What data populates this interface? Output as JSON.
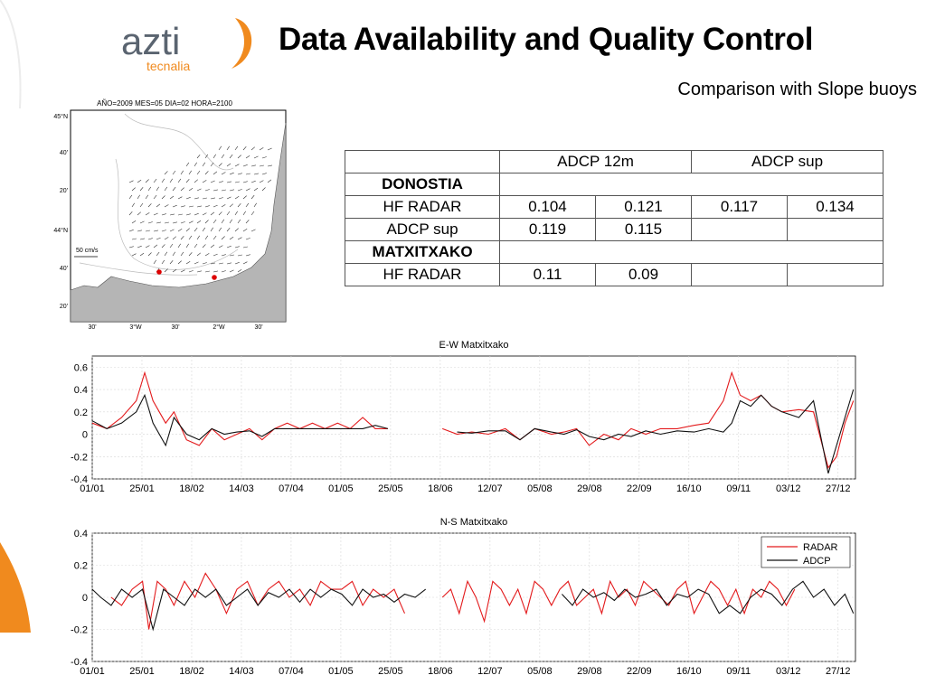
{
  "header": {
    "title": "Data Availability and Quality Control",
    "subtitle": "Comparison with Slope buoys"
  },
  "logo": {
    "main": "azti",
    "sub": "tecnalia"
  },
  "map": {
    "caption": "AÑO=2009 MES=05 DIA=02 HORA=2100",
    "scale_label": "50 cm/s",
    "lat_labels": [
      "45°N",
      "40'",
      "20'",
      "44°N",
      "40'",
      "20'"
    ],
    "lon_labels": [
      "30'",
      "3°W",
      "30'",
      "2°W",
      "30'"
    ],
    "marker_color": "#dd0000"
  },
  "table": {
    "header": [
      "",
      "ADCP 12m",
      "ADCP sup"
    ],
    "sections": [
      {
        "name": "DONOSTIA",
        "rows": [
          {
            "label": "HF RADAR",
            "cells": [
              "0.104",
              "0.121",
              "0.117",
              "0.134"
            ]
          },
          {
            "label": "ADCP sup",
            "cells": [
              "0.119",
              "0.115",
              "",
              ""
            ]
          }
        ]
      },
      {
        "name": "MATXITXAKO",
        "rows": [
          {
            "label": "HF RADAR",
            "cells": [
              "0.11",
              "0.09",
              "",
              ""
            ]
          }
        ]
      }
    ]
  },
  "chart_data": [
    {
      "type": "line",
      "title": "E-W Matxitxako",
      "ylim": [
        -0.4,
        0.7
      ],
      "yticks": [
        -0.4,
        -0.2,
        0,
        0.2,
        0.4,
        0.6
      ],
      "xticks": [
        "01/01",
        "25/01",
        "18/02",
        "14/03",
        "07/04",
        "01/05",
        "25/05",
        "18/06",
        "12/07",
        "05/08",
        "29/08",
        "22/09",
        "16/10",
        "09/11",
        "03/12",
        "27/12"
      ],
      "x_unit": "day of year",
      "grid": true,
      "series": [
        {
          "name": "RADAR",
          "color": "#e31a1c",
          "x": [
            1,
            8,
            15,
            22,
            26,
            30,
            36,
            40,
            46,
            52,
            58,
            64,
            70,
            76,
            82,
            88,
            94,
            100,
            106,
            112,
            118,
            124,
            130,
            136,
            142,
            168,
            175,
            182,
            190,
            198,
            205,
            212,
            220,
            226,
            232,
            238,
            245,
            252,
            258,
            265,
            272,
            280,
            288,
            295,
            302,
            306,
            310,
            315,
            320,
            325,
            330,
            338,
            345,
            352,
            356,
            360,
            364
          ],
          "y": [
            0.1,
            0.05,
            0.15,
            0.3,
            0.55,
            0.3,
            0.1,
            0.2,
            -0.05,
            -0.1,
            0.05,
            -0.05,
            0,
            0.05,
            -0.05,
            0.05,
            0.1,
            0.05,
            0.1,
            0.05,
            0.1,
            0.05,
            0.15,
            0.05,
            0.05,
            0.05,
            0,
            0.02,
            0,
            0.05,
            -0.05,
            0.05,
            0,
            0.02,
            0.05,
            -0.1,
            0.0,
            -0.05,
            0.05,
            0,
            0.05,
            0.05,
            0.08,
            0.1,
            0.3,
            0.55,
            0.35,
            0.3,
            0.35,
            0.25,
            0.2,
            0.22,
            0.2,
            -0.3,
            -0.2,
            0.1,
            0.3
          ]
        },
        {
          "name": "ADCP",
          "color": "#111111",
          "x": [
            1,
            8,
            15,
            22,
            26,
            30,
            36,
            40,
            46,
            52,
            58,
            64,
            70,
            76,
            82,
            88,
            94,
            100,
            106,
            112,
            118,
            124,
            130,
            136,
            142,
            175,
            182,
            190,
            198,
            205,
            212,
            220,
            226,
            232,
            238,
            245,
            252,
            258,
            265,
            272,
            280,
            288,
            295,
            302,
            306,
            310,
            315,
            320,
            325,
            330,
            338,
            345,
            352,
            356,
            360,
            364
          ],
          "y": [
            0.12,
            0.05,
            0.1,
            0.2,
            0.35,
            0.1,
            -0.1,
            0.15,
            0,
            -0.05,
            0.05,
            0,
            0.02,
            0.03,
            -0.02,
            0.05,
            0.05,
            0.05,
            0.05,
            0.05,
            0.05,
            0.05,
            0.05,
            0.08,
            0.05,
            0.02,
            0.01,
            0.03,
            0.03,
            -0.05,
            0.05,
            0.02,
            0,
            0.04,
            -0.02,
            -0.05,
            0.0,
            -0.02,
            0.03,
            0,
            0.03,
            0.02,
            0.05,
            0.02,
            0.1,
            0.3,
            0.25,
            0.35,
            0.25,
            0.2,
            0.15,
            0.3,
            -0.35,
            -0.1,
            0.15,
            0.4
          ]
        }
      ]
    },
    {
      "type": "line",
      "title": "N-S Matxitxako",
      "ylim": [
        -0.4,
        0.4
      ],
      "yticks": [
        -0.4,
        -0.2,
        0,
        0.2,
        0.4
      ],
      "xticks": [
        "01/01",
        "25/01",
        "18/02",
        "14/03",
        "07/04",
        "01/05",
        "25/05",
        "18/06",
        "12/07",
        "05/08",
        "29/08",
        "22/09",
        "16/10",
        "09/11",
        "03/12",
        "27/12"
      ],
      "x_unit": "day of year",
      "grid": true,
      "legend": "top-right",
      "series": [
        {
          "name": "RADAR",
          "color": "#e31a1c",
          "x": [
            10,
            15,
            20,
            25,
            28,
            32,
            36,
            40,
            45,
            50,
            55,
            60,
            65,
            70,
            75,
            80,
            85,
            90,
            95,
            100,
            105,
            110,
            115,
            120,
            125,
            130,
            135,
            140,
            145,
            150,
            168,
            172,
            176,
            180,
            184,
            188,
            192,
            196,
            200,
            204,
            208,
            212,
            216,
            220,
            224,
            228,
            232,
            236,
            240,
            244,
            248,
            252,
            256,
            260,
            264,
            268,
            272,
            276,
            280,
            284,
            288,
            292,
            296,
            300,
            304,
            308,
            312,
            316,
            320,
            324,
            328,
            332,
            336
          ],
          "y": [
            0,
            -0.05,
            0.05,
            0.1,
            -0.2,
            0.1,
            0.05,
            -0.05,
            0.1,
            0,
            0.15,
            0.05,
            -0.1,
            0.05,
            0.1,
            -0.05,
            0.05,
            0.1,
            0,
            0.05,
            -0.05,
            0.1,
            0.05,
            0.05,
            0.1,
            -0.05,
            0.05,
            0,
            0.05,
            -0.1,
            0,
            0.05,
            -0.1,
            0.1,
            0,
            -0.15,
            0.1,
            0.05,
            -0.05,
            0.05,
            -0.1,
            0.1,
            0.05,
            -0.05,
            0.05,
            0.1,
            -0.05,
            0,
            0.05,
            -0.1,
            0.1,
            0,
            0.05,
            -0.05,
            0.1,
            0.05,
            0,
            -0.05,
            0.05,
            0.1,
            -0.1,
            0,
            0.1,
            0.05,
            -0.05,
            0.05,
            -0.1,
            0.05,
            0,
            0.1,
            0.05,
            -0.05,
            0.05
          ]
        },
        {
          "name": "ADCP",
          "color": "#111111",
          "x": [
            1,
            5,
            10,
            15,
            20,
            25,
            30,
            35,
            40,
            45,
            50,
            55,
            60,
            65,
            70,
            75,
            80,
            85,
            90,
            95,
            100,
            105,
            110,
            115,
            120,
            125,
            130,
            135,
            140,
            145,
            150,
            155,
            160,
            225,
            230,
            235,
            240,
            245,
            250,
            255,
            260,
            265,
            270,
            275,
            280,
            285,
            290,
            295,
            300,
            305,
            310,
            315,
            320,
            325,
            330,
            335,
            340,
            345,
            350,
            355,
            360,
            364
          ],
          "y": [
            0.05,
            0,
            -0.05,
            0.05,
            0,
            0.05,
            -0.2,
            0.05,
            0,
            -0.05,
            0.05,
            0,
            0.05,
            -0.05,
            0,
            0.05,
            -0.05,
            0.03,
            0,
            0.05,
            -0.03,
            0.05,
            0,
            0.05,
            0.02,
            -0.05,
            0.05,
            0,
            0.02,
            -0.03,
            0.02,
            0,
            0.05,
            0.02,
            -0.05,
            0.05,
            0,
            0.03,
            -0.02,
            0.05,
            0,
            0.02,
            0.05,
            -0.05,
            0.02,
            0,
            0.05,
            0.02,
            -0.1,
            -0.05,
            -0.1,
            0,
            0.05,
            0.02,
            -0.05,
            0.05,
            0.1,
            0,
            0.05,
            -0.05,
            0.02,
            -0.1
          ]
        }
      ]
    }
  ]
}
